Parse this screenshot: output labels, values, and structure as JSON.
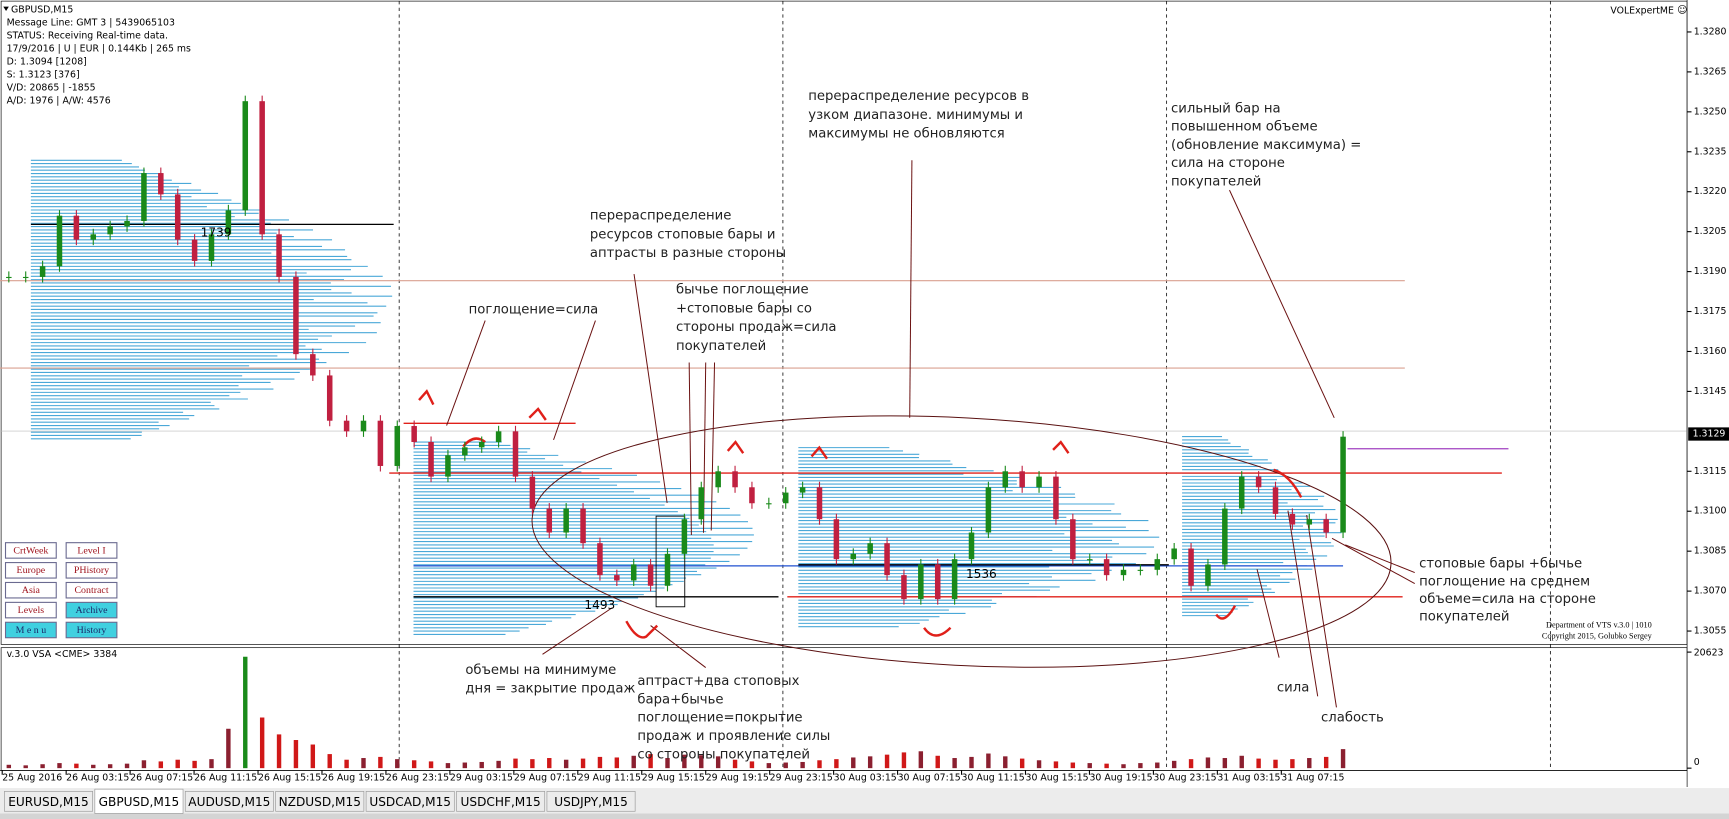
{
  "window": {
    "symbol": "GBPUSD,M15",
    "expert": "VOLExpertME"
  },
  "info_lines": [
    "Message Line: GMT 3 | 5439065103",
    "STATUS:  Receiving Real-time data.",
    "17/9/2016 | U | EUR | 0.144Kb | 265 ms",
    "D: 1.3094  [1208]",
    "S: 1.3123  [376]",
    "V/D: 20865 | -1855",
    "A/D: 1976 | A/W: 4576"
  ],
  "buttons": [
    "CrtWeek",
    "Level I",
    "Europe",
    "PHistory",
    "Asia",
    "Contract",
    "Levels",
    "Archive",
    "M e n u",
    "History"
  ],
  "price_axis": {
    "ylim": [
      1.305,
      1.3292
    ],
    "ticks": [
      {
        "value": 1.328,
        "label": "1.3280"
      },
      1.3265,
      {
        "value": 1.325,
        "label": "1.3250"
      },
      1.3235,
      {
        "value": 1.322,
        "label": "1.3220"
      },
      1.3205,
      {
        "value": 1.319,
        "label": "1.3190"
      },
      1.3175,
      {
        "value": 1.316,
        "label": "1.3160"
      },
      1.3145,
      1.3115,
      {
        "value": 1.31,
        "label": "1.3100"
      },
      1.3085,
      {
        "value": 1.307,
        "label": "1.3070"
      },
      1.3055
    ],
    "current": 1.3129
  },
  "time_axis": [
    "25 Aug 2016",
    "26 Aug 03:15",
    "26 Aug 07:15",
    "26 Aug 11:15",
    "26 Aug 15:15",
    "26 Aug 19:15",
    "26 Aug 23:15",
    "29 Aug 03:15",
    "29 Aug 07:15",
    "29 Aug 11:15",
    "29 Aug 15:15",
    "29 Aug 19:15",
    "29 Aug 23:15",
    "30 Aug 03:15",
    "30 Aug 07:15",
    "30 Aug 11:15",
    "30 Aug 15:15",
    "30 Aug 19:15",
    "30 Aug 23:15",
    "31 Aug 03:15",
    "31 Aug 07:15"
  ],
  "bars": {
    "closes": [
      1.3188,
      1.3188,
      1.3192,
      1.3211,
      1.3202,
      1.3204,
      1.3207,
      1.3209,
      1.3227,
      1.3219,
      1.3202,
      1.3194,
      1.3204,
      1.3213,
      1.3254,
      1.3204,
      1.3188,
      1.3159,
      1.3151,
      1.3134,
      1.313,
      1.3134,
      1.3117,
      1.3132,
      1.3126,
      1.3113,
      1.3121,
      1.3124,
      1.3126,
      1.313,
      1.3113,
      1.3101,
      1.3092,
      1.3101,
      1.3088,
      1.3076,
      1.3074,
      1.308,
      1.3072,
      1.3084,
      1.3097,
      1.3109,
      1.3115,
      1.3109,
      1.3103,
      1.3103,
      1.3107,
      1.3109,
      1.3097,
      1.3082,
      1.3084,
      1.3088,
      1.3076,
      1.3067,
      1.308,
      1.3067,
      1.3082,
      1.3092,
      1.3109,
      1.3115,
      1.3109,
      1.3113,
      1.3097,
      1.3082,
      1.3082,
      1.3076,
      1.3078,
      1.3078,
      1.3082,
      1.3086,
      1.3072,
      1.308,
      1.3101,
      1.3113,
      1.3109,
      1.3099,
      1.3095,
      1.3097,
      1.3092,
      1.3128
    ]
  },
  "volume": {
    "title": "v.3.0 VSA <CME> 3384",
    "vlim": [
      0,
      20623
    ],
    "ticks": [
      20623,
      0
    ],
    "values": [
      600,
      500,
      700,
      900,
      800,
      600,
      700,
      800,
      1400,
      1200,
      1500,
      1300,
      1600,
      7000,
      19800,
      9000,
      6000,
      5000,
      4200,
      2500,
      1500,
      1800,
      2000,
      1600,
      1400,
      1200,
      900,
      1000,
      1100,
      1300,
      1700,
      1600,
      1800,
      1500,
      1700,
      2000,
      1900,
      2200,
      2500,
      1800,
      2400,
      2300,
      2100,
      1500,
      1200,
      900,
      1000,
      1100,
      1400,
      1600,
      1900,
      2100,
      2400,
      2800,
      3000,
      2200,
      1800,
      2000,
      2600,
      2100,
      1700,
      1400,
      1200,
      1000,
      900,
      800,
      700,
      900,
      1000,
      1300,
      1600,
      1900,
      1800,
      2200,
      1700,
      1500,
      1600,
      1800,
      2000,
      3384
    ]
  },
  "profile_labels": [
    1739,
    1493,
    1536
  ],
  "annotations": [
    {
      "lines": [
        "поглощение=сила"
      ]
    },
    {
      "lines": [
        "перераспределение ресурсов в",
        "узком диапазоне. минимумы и",
        "максимумы не обновляются"
      ]
    },
    {
      "lines": [
        "перераспределение",
        "ресурсов стоповые бары и",
        "аптрасты в разные стороны"
      ]
    },
    {
      "lines": [
        "бычье поглощение",
        "+стоповые бары со",
        "стороны продаж=сила",
        "покупателей"
      ]
    },
    {
      "lines": [
        "сильный бар на",
        "повышенном объеме",
        "(обновление максимума) =",
        "сила на стороне",
        "покупателей"
      ]
    },
    {
      "lines": [
        "стоповые бары +бычье",
        "поглощение на среднем",
        "объеме=сила на стороне",
        "покупателей"
      ]
    },
    {
      "lines": [
        "объемы на минимуме",
        "дня = закрытие продаж"
      ]
    },
    {
      "lines": [
        "аптраст+два стоповых",
        "бара+бычье",
        "поглощение=покрытие",
        "продаж и проявление силы",
        "со стороны покупателей"
      ]
    },
    {
      "lines": [
        "сила"
      ]
    },
    {
      "lines": [
        "слабость"
      ]
    }
  ],
  "footer": [
    "Department of VTS  v.3.0 | 1010",
    "Copyright 2015, Golubko Sergey"
  ],
  "tabs": [
    "EURUSD,M15",
    "GBPUSD,M15",
    "AUDUSD,M15",
    "NZDUSD,M15",
    "USDCAD,M15",
    "USDCHF,M15",
    "USDJPY,M15"
  ]
}
